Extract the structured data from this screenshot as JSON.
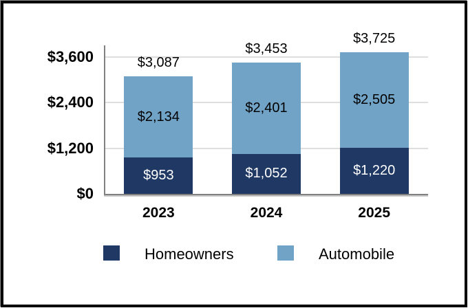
{
  "chart_data": {
    "type": "bar",
    "stacked": true,
    "title": "",
    "categories": [
      "2023",
      "2024",
      "2025"
    ],
    "series": [
      {
        "name": "Homeowners",
        "color": "#1F3864",
        "values": [
          953,
          1052,
          1220
        ],
        "labels": [
          "$953",
          "$1,052",
          "$1,220"
        ],
        "label_color": "#FFFFFF"
      },
      {
        "name": "Automobile",
        "color": "#71A3C6",
        "values": [
          2134,
          2401,
          2505
        ],
        "labels": [
          "$2,134",
          "$2,401",
          "$2,505"
        ],
        "label_color": "#000000"
      }
    ],
    "totals": [
      3087,
      3453,
      3725
    ],
    "total_labels": [
      "$3,087",
      "$3,453",
      "$3,725"
    ],
    "y_axis": {
      "ticks": [
        0,
        1200,
        2400,
        3600
      ],
      "tick_labels": [
        "$0",
        "$1,200",
        "$2,400",
        "$3,600"
      ],
      "ylim": [
        0,
        3900
      ]
    },
    "grid": true,
    "legend_position": "bottom",
    "legend": [
      {
        "label": "Homeowners",
        "color": "#1F3864"
      },
      {
        "label": "Automobile",
        "color": "#71A3C6"
      }
    ],
    "colors": {
      "gridline": "#DEDEDE",
      "axis": "#808080",
      "background": "#FFFFFF",
      "frame_border": "#000000"
    }
  }
}
